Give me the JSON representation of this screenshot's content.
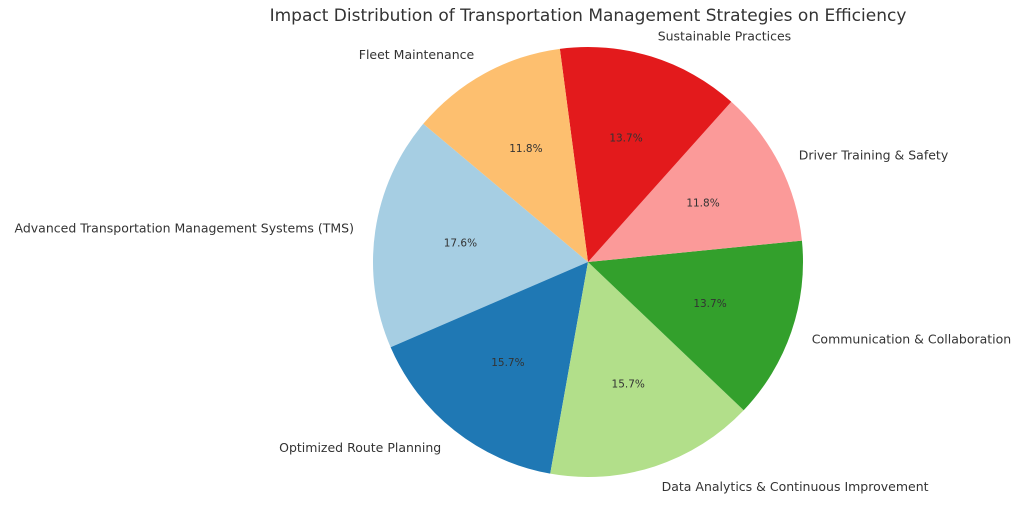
{
  "chart_data": {
    "type": "pie",
    "title": "Impact Distribution of Transportation Management Strategies on Efficiency",
    "start_angle_deg": 140,
    "direction": "counterclockwise",
    "slices": [
      {
        "label": "Advanced Transportation Management Systems (TMS)",
        "value": 17.6,
        "pct_label": "17.6%",
        "color": "#a6cee3"
      },
      {
        "label": "Optimized Route Planning",
        "value": 15.7,
        "pct_label": "15.7%",
        "color": "#1f78b4"
      },
      {
        "label": "Data Analytics & Continuous Improvement",
        "value": 15.7,
        "pct_label": "15.7%",
        "color": "#b2df8a"
      },
      {
        "label": "Communication & Collaboration",
        "value": 13.7,
        "pct_label": "13.7%",
        "color": "#33a02c"
      },
      {
        "label": "Driver Training & Safety",
        "value": 11.8,
        "pct_label": "11.8%",
        "color": "#fb9a99"
      },
      {
        "label": "Sustainable Practices",
        "value": 13.7,
        "pct_label": "13.7%",
        "color": "#e31a1c"
      },
      {
        "label": "Fleet Maintenance",
        "value": 11.8,
        "pct_label": "11.8%",
        "color": "#fdbf6f"
      }
    ]
  }
}
